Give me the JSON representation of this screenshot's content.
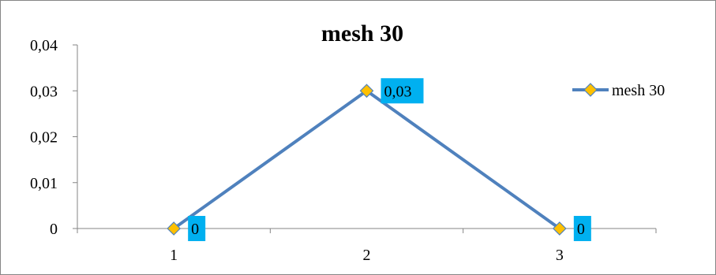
{
  "chart_data": {
    "type": "line",
    "title": "mesh 30",
    "xlabel": "",
    "ylabel": "",
    "categories": [
      "1",
      "2",
      "3"
    ],
    "series": [
      {
        "name": "mesh 30",
        "values": [
          0,
          0.03,
          0
        ],
        "data_labels": [
          "0",
          "0,03",
          "0"
        ]
      }
    ],
    "ylim": [
      0,
      0.04
    ],
    "yticks": [
      0,
      0.01,
      0.02,
      0.03,
      0.04
    ],
    "ytick_labels": [
      "0",
      "0,01",
      "0,02",
      "0,03",
      "0,04"
    ],
    "grid": false,
    "legend_position": "right",
    "colors": {
      "line": "#4f81bd",
      "marker_fill": "#ffc000",
      "marker_stroke": "#4f81bd",
      "data_label_background": "#00b0f0",
      "axis": "#868686",
      "border": "#868686"
    }
  }
}
